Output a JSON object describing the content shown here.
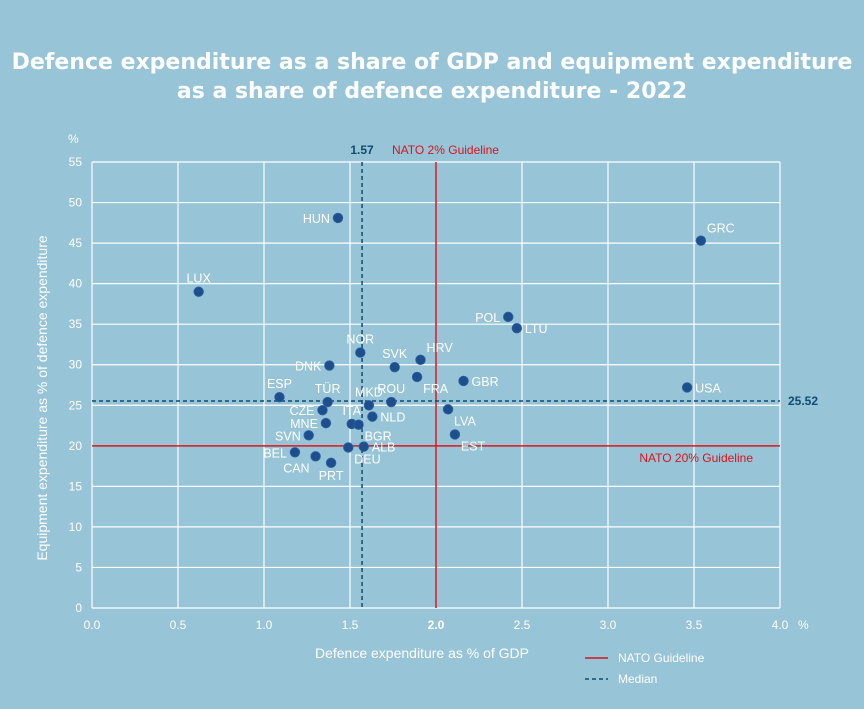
{
  "chart_data": {
    "type": "scatter",
    "title_line1": "Defence expenditure as a share of GDP and equipment expenditure",
    "title_line2": "as a share of defence expenditure - 2022",
    "xlabel": "Defence expenditure as % of GDP",
    "ylabel": "Equipment expenditure as % of defence expenditure",
    "x_unit": "%",
    "y_unit": "%",
    "xlim": [
      0,
      4.0
    ],
    "ylim": [
      0,
      55
    ],
    "x_ticks": [
      "0.0",
      "0.5",
      "1.0",
      "1.5",
      "2.0",
      "2.5",
      "3.0",
      "3.5",
      "4.0"
    ],
    "x_tick_values": [
      0,
      0.5,
      1.0,
      1.5,
      2.0,
      2.5,
      3.0,
      3.5,
      4.0
    ],
    "x_tick_bold": [
      false,
      false,
      false,
      false,
      true,
      false,
      false,
      false,
      false
    ],
    "y_ticks": [
      "0",
      "5",
      "10",
      "15",
      "20",
      "25",
      "30",
      "35",
      "40",
      "45",
      "50",
      "55"
    ],
    "y_tick_values": [
      0,
      5,
      10,
      15,
      20,
      25,
      30,
      35,
      40,
      45,
      50,
      55
    ],
    "grid": true,
    "reference_lines": {
      "nato_gdp": {
        "value": 2.0,
        "label": "NATO 2% Guideline",
        "color": "#d9141b"
      },
      "nato_equipment": {
        "value": 20,
        "label": "NATO 20% Guideline",
        "color": "#d9141b"
      },
      "median_x": {
        "value": 1.57,
        "label": "1.57",
        "color": "#0f4c6e"
      },
      "median_y": {
        "value": 25.52,
        "label": "25.52",
        "color": "#0f4c6e"
      }
    },
    "legend": [
      {
        "label": "NATO Guideline",
        "style": "solid",
        "color": "#d9141b"
      },
      {
        "label": "Median",
        "style": "dashed",
        "color": "#0f4c6e"
      }
    ],
    "points_color": "#1e4f8c",
    "points": [
      {
        "label": "GRC",
        "x": 3.54,
        "y": 45.3,
        "pos": "ne"
      },
      {
        "label": "HUN",
        "x": 1.43,
        "y": 48.1,
        "pos": "w"
      },
      {
        "label": "LUX",
        "x": 0.62,
        "y": 39.0,
        "pos": "n"
      },
      {
        "label": "POL",
        "x": 2.42,
        "y": 35.9,
        "pos": "w"
      },
      {
        "label": "LTU",
        "x": 2.47,
        "y": 34.5,
        "pos": "e"
      },
      {
        "label": "NOR",
        "x": 1.56,
        "y": 31.5,
        "pos": "n"
      },
      {
        "label": "DNK",
        "x": 1.38,
        "y": 29.9,
        "pos": "w"
      },
      {
        "label": "SVK",
        "x": 1.76,
        "y": 29.7,
        "pos": "n"
      },
      {
        "label": "HRV",
        "x": 1.91,
        "y": 30.6,
        "pos": "ne"
      },
      {
        "label": "FRA",
        "x": 1.89,
        "y": 28.5,
        "pos": "se"
      },
      {
        "label": "GBR",
        "x": 2.16,
        "y": 28.0,
        "pos": "e"
      },
      {
        "label": "USA",
        "x": 3.46,
        "y": 27.2,
        "pos": "e"
      },
      {
        "label": "ESP",
        "x": 1.09,
        "y": 26.0,
        "pos": "n"
      },
      {
        "label": "TÜR",
        "x": 1.37,
        "y": 25.4,
        "pos": "n"
      },
      {
        "label": "MKD",
        "x": 1.61,
        "y": 25.0,
        "pos": "n"
      },
      {
        "label": "ROU",
        "x": 1.74,
        "y": 25.4,
        "pos": "n"
      },
      {
        "label": "LVA",
        "x": 2.07,
        "y": 24.5,
        "pos": "se"
      },
      {
        "label": "CZE",
        "x": 1.34,
        "y": 24.4,
        "pos": "w"
      },
      {
        "label": "ITA",
        "x": 1.51,
        "y": 22.7,
        "pos": "n"
      },
      {
        "label": "NLD",
        "x": 1.63,
        "y": 23.6,
        "pos": "e"
      },
      {
        "label": "BGR",
        "x": 1.55,
        "y": 22.6,
        "pos": "se"
      },
      {
        "label": "MNE",
        "x": 1.36,
        "y": 22.8,
        "pos": "w"
      },
      {
        "label": "SVN",
        "x": 1.26,
        "y": 21.3,
        "pos": "w"
      },
      {
        "label": "EST",
        "x": 2.11,
        "y": 21.4,
        "pos": "se"
      },
      {
        "label": "ALB",
        "x": 1.58,
        "y": 19.9,
        "pos": "e"
      },
      {
        "label": "DEU",
        "x": 1.49,
        "y": 19.8,
        "pos": "se"
      },
      {
        "label": "BEL",
        "x": 1.18,
        "y": 19.2,
        "pos": "w"
      },
      {
        "label": "CAN",
        "x": 1.3,
        "y": 18.7,
        "pos": "sw"
      },
      {
        "label": "PRT",
        "x": 1.39,
        "y": 17.9,
        "pos": "s"
      }
    ]
  }
}
